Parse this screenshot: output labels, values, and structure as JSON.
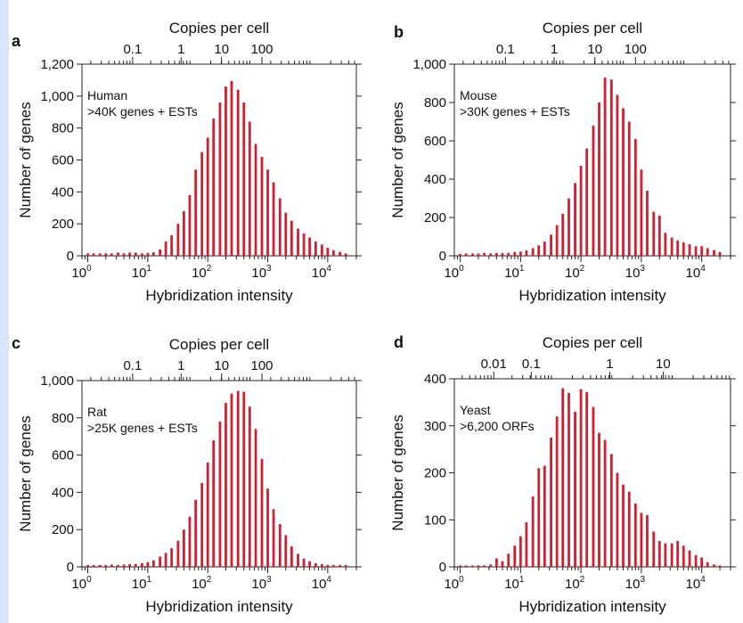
{
  "chart_data": [
    {
      "type": "bar",
      "panel_letter": "a",
      "xlabel": "Hybridization intensity",
      "ylabel": "Number of genes",
      "top_axis_label": "Copies per cell",
      "top_ticks": [
        {
          "label": "0.1",
          "x": 5.6
        },
        {
          "label": "1",
          "x": 36
        },
        {
          "label": "10",
          "x": 170
        },
        {
          "label": "100",
          "x": 800
        }
      ],
      "annotation": [
        "Human",
        ">40K genes + ESTs"
      ],
      "x_scale": "log",
      "xlim": [
        0.8,
        30000
      ],
      "ylim": [
        0,
        1200
      ],
      "y_ticks": [
        0,
        200,
        400,
        600,
        800,
        1000,
        1200
      ],
      "y_tick_labels": [
        "0",
        "200",
        "400",
        "600",
        "800",
        "1,000",
        "1,200"
      ],
      "x_tick_bases": [
        "10",
        "10",
        "10",
        "10",
        "10"
      ],
      "x_tick_exponents": [
        "0",
        "1",
        "2",
        "3",
        "4"
      ],
      "x_tick_values": [
        1,
        10,
        100,
        1000,
        10000
      ],
      "x": [
        1.0,
        1.25,
        1.6,
        2.0,
        2.5,
        3.2,
        4.0,
        5.0,
        6.3,
        8.0,
        10,
        12.5,
        16,
        20,
        25,
        32,
        40,
        50,
        63,
        80,
        100,
        125,
        160,
        200,
        250,
        320,
        400,
        500,
        630,
        800,
        1000,
        1250,
        1600,
        2000,
        2500,
        3200,
        4000,
        5000,
        6300,
        8000,
        10000,
        12500,
        16000,
        20000
      ],
      "values": [
        15,
        15,
        15,
        15,
        15,
        20,
        15,
        20,
        20,
        15,
        18,
        22,
        40,
        90,
        130,
        200,
        280,
        380,
        540,
        650,
        740,
        860,
        960,
        1060,
        1095,
        1040,
        960,
        840,
        700,
        620,
        540,
        460,
        360,
        270,
        220,
        170,
        140,
        115,
        90,
        70,
        50,
        35,
        25,
        15
      ]
    },
    {
      "type": "bar",
      "panel_letter": "b",
      "xlabel": "Hybridization intensity",
      "ylabel": "Number of genes",
      "top_axis_label": "Copies per cell",
      "top_ticks": [
        {
          "label": "0.1",
          "x": 5.6
        },
        {
          "label": "1",
          "x": 36
        },
        {
          "label": "10",
          "x": 170
        },
        {
          "label": "100",
          "x": 800
        }
      ],
      "annotation": [
        "Mouse",
        ">30K genes + ESTs"
      ],
      "x_scale": "log",
      "xlim": [
        0.8,
        30000
      ],
      "ylim": [
        0,
        1000
      ],
      "y_ticks": [
        0,
        200,
        400,
        600,
        800,
        1000
      ],
      "y_tick_labels": [
        "0",
        "200",
        "400",
        "600",
        "800",
        "1,000"
      ],
      "x_tick_bases": [
        "10",
        "10",
        "10",
        "10",
        "10"
      ],
      "x_tick_exponents": [
        "0",
        "1",
        "2",
        "3",
        "4"
      ],
      "x_tick_values": [
        1,
        10,
        100,
        1000,
        10000
      ],
      "x": [
        1.0,
        1.25,
        1.6,
        2.0,
        2.5,
        3.2,
        4.0,
        5.0,
        6.3,
        8.0,
        10,
        12.5,
        16,
        20,
        25,
        32,
        40,
        50,
        63,
        80,
        100,
        125,
        160,
        200,
        250,
        320,
        400,
        500,
        630,
        800,
        1000,
        1250,
        1600,
        2000,
        2500,
        3200,
        4000,
        5000,
        6300,
        8000,
        10000,
        12500,
        16000,
        20000
      ],
      "values": [
        10,
        12,
        12,
        12,
        15,
        12,
        15,
        15,
        15,
        20,
        22,
        28,
        40,
        55,
        75,
        110,
        160,
        220,
        300,
        380,
        470,
        560,
        680,
        800,
        930,
        920,
        840,
        770,
        700,
        610,
        450,
        340,
        230,
        210,
        120,
        95,
        80,
        70,
        60,
        50,
        50,
        40,
        30,
        20
      ]
    },
    {
      "type": "bar",
      "panel_letter": "c",
      "xlabel": "Hybridization intensity",
      "ylabel": "Number of genes",
      "top_axis_label": "Copies per cell",
      "top_ticks": [
        {
          "label": "0.1",
          "x": 5.6
        },
        {
          "label": "1",
          "x": 36
        },
        {
          "label": "10",
          "x": 170
        },
        {
          "label": "100",
          "x": 800
        }
      ],
      "annotation": [
        "Rat",
        ">25K genes + ESTs"
      ],
      "x_scale": "log",
      "xlim": [
        0.8,
        30000
      ],
      "ylim": [
        0,
        1000
      ],
      "y_ticks": [
        0,
        200,
        400,
        600,
        800,
        1000
      ],
      "y_tick_labels": [
        "0",
        "200",
        "400",
        "600",
        "800",
        "1,000"
      ],
      "x_tick_bases": [
        "10",
        "10",
        "10",
        "10",
        "10"
      ],
      "x_tick_exponents": [
        "0",
        "1",
        "2",
        "3",
        "4"
      ],
      "x_tick_values": [
        1,
        10,
        100,
        1000,
        10000
      ],
      "x": [
        1.0,
        1.25,
        1.6,
        2.0,
        2.5,
        3.2,
        4.0,
        5.0,
        6.3,
        8.0,
        10,
        12.5,
        16,
        20,
        25,
        32,
        40,
        50,
        63,
        80,
        100,
        125,
        160,
        200,
        250,
        320,
        400,
        500,
        630,
        800,
        1000,
        1250,
        1600,
        2000,
        2500,
        3200,
        4000,
        5000,
        6300,
        8000,
        10000,
        12500,
        16000,
        20000
      ],
      "values": [
        10,
        10,
        10,
        10,
        12,
        10,
        12,
        15,
        15,
        20,
        25,
        35,
        55,
        75,
        100,
        140,
        200,
        270,
        360,
        450,
        560,
        680,
        780,
        880,
        930,
        945,
        940,
        860,
        740,
        580,
        420,
        310,
        230,
        170,
        110,
        70,
        45,
        30,
        20,
        15,
        10,
        10,
        10,
        10
      ]
    },
    {
      "type": "bar",
      "panel_letter": "d",
      "xlabel": "Hybridization intensity",
      "ylabel": "Number of genes",
      "top_axis_label": "Copies per cell",
      "top_ticks": [
        {
          "label": "0.01",
          "x": 3.6
        },
        {
          "label": "0.1",
          "x": 15
        },
        {
          "label": "1",
          "x": 300
        },
        {
          "label": "10",
          "x": 2300
        }
      ],
      "annotation": [
        "Yeast",
        ">6,200 ORFs"
      ],
      "x_scale": "log",
      "xlim": [
        0.8,
        30000
      ],
      "ylim": [
        0,
        400
      ],
      "y_ticks": [
        0,
        100,
        200,
        300,
        400
      ],
      "y_tick_labels": [
        "0",
        "100",
        "200",
        "300",
        "400"
      ],
      "x_tick_bases": [
        "10",
        "10",
        "10",
        "10",
        "10"
      ],
      "x_tick_exponents": [
        "0",
        "1",
        "2",
        "3",
        "4"
      ],
      "x_tick_values": [
        1,
        10,
        100,
        1000,
        10000
      ],
      "x": [
        1.0,
        1.25,
        1.6,
        2.0,
        2.5,
        3.2,
        4.0,
        5.0,
        6.3,
        8.0,
        10,
        12.5,
        16,
        20,
        25,
        32,
        40,
        50,
        63,
        80,
        100,
        125,
        160,
        200,
        250,
        320,
        400,
        500,
        630,
        800,
        1000,
        1250,
        1600,
        2000,
        2500,
        3200,
        4000,
        5000,
        6300,
        8000,
        10000,
        12500,
        16000,
        20000
      ],
      "values": [
        3,
        3,
        3,
        3,
        3,
        5,
        18,
        12,
        28,
        45,
        65,
        95,
        150,
        210,
        215,
        275,
        320,
        380,
        370,
        330,
        378,
        372,
        340,
        285,
        270,
        240,
        200,
        175,
        160,
        135,
        115,
        110,
        75,
        55,
        50,
        50,
        55,
        45,
        35,
        25,
        20,
        10,
        5,
        3
      ]
    }
  ]
}
